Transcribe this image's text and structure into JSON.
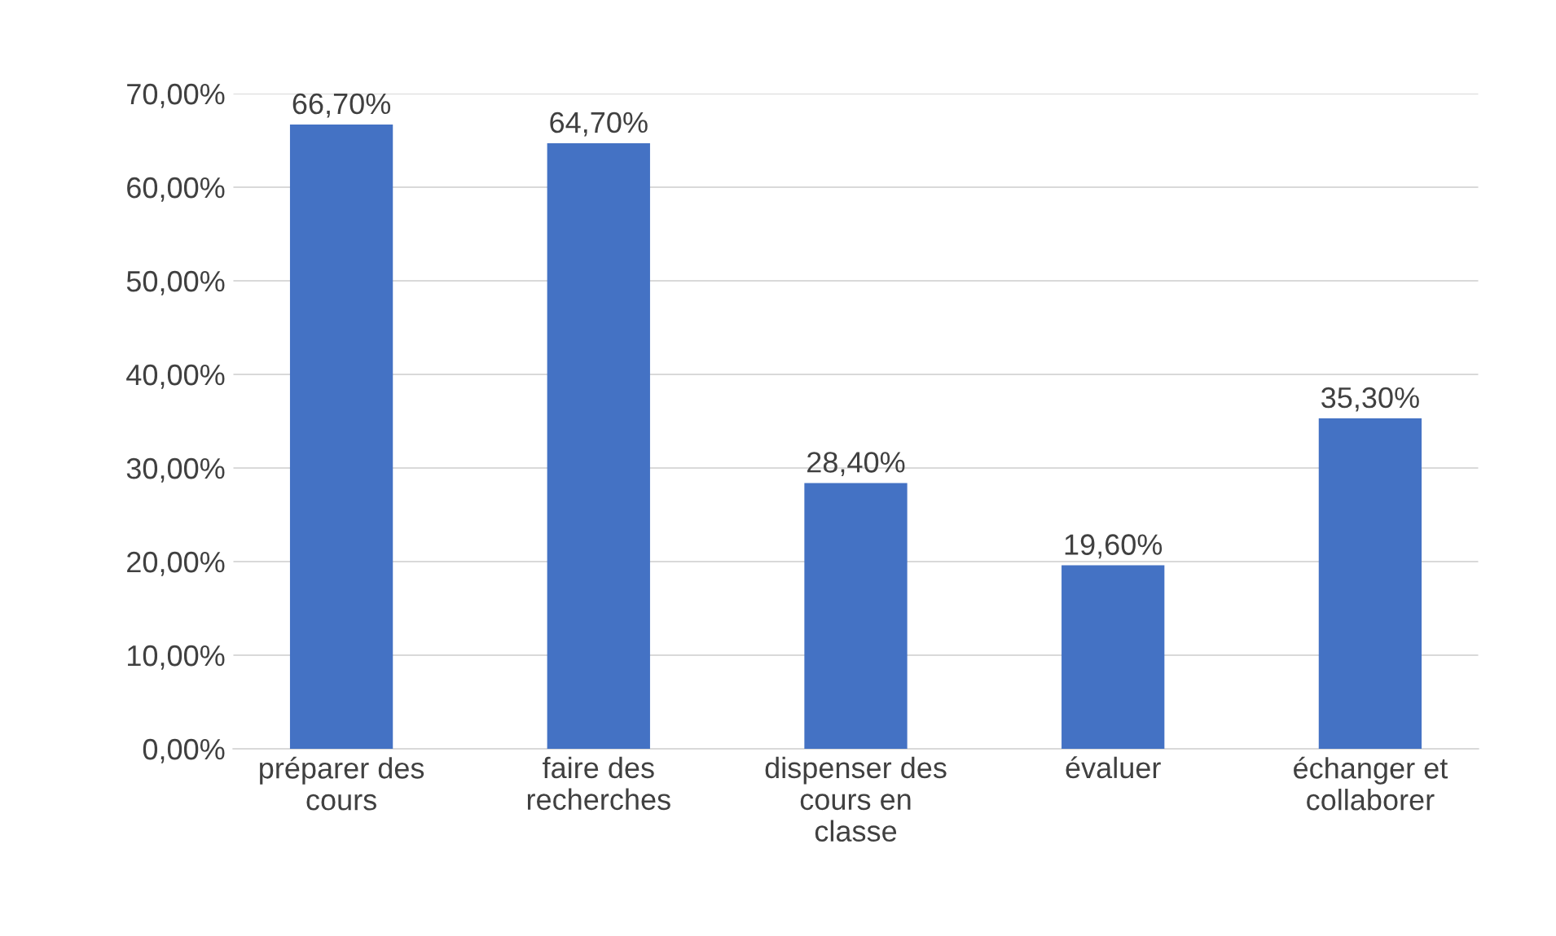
{
  "chart_data": {
    "type": "bar",
    "categories": [
      "préparer des\ncours",
      "faire des\nrecherches",
      "dispenser des\ncours en\nclasse",
      "évaluer",
      "échanger et\ncollaborer"
    ],
    "values": [
      66.7,
      64.7,
      28.4,
      19.6,
      35.3
    ],
    "value_labels": [
      "66,70%",
      "64,70%",
      "28,40%",
      "19,60%",
      "35,30%"
    ],
    "color": "#4472c4",
    "ylim": [
      0,
      70
    ],
    "yticks": [
      {
        "value": 0,
        "label": "0,00%"
      },
      {
        "value": 10,
        "label": "10,00%"
      },
      {
        "value": 20,
        "label": "20,00%"
      },
      {
        "value": 30,
        "label": "30,00%"
      },
      {
        "value": 40,
        "label": "40,00%"
      },
      {
        "value": 50,
        "label": "50,00%"
      },
      {
        "value": 60,
        "label": "60,00%"
      },
      {
        "value": 70,
        "label": "70,00%"
      }
    ],
    "grid": "y",
    "legend": false
  }
}
